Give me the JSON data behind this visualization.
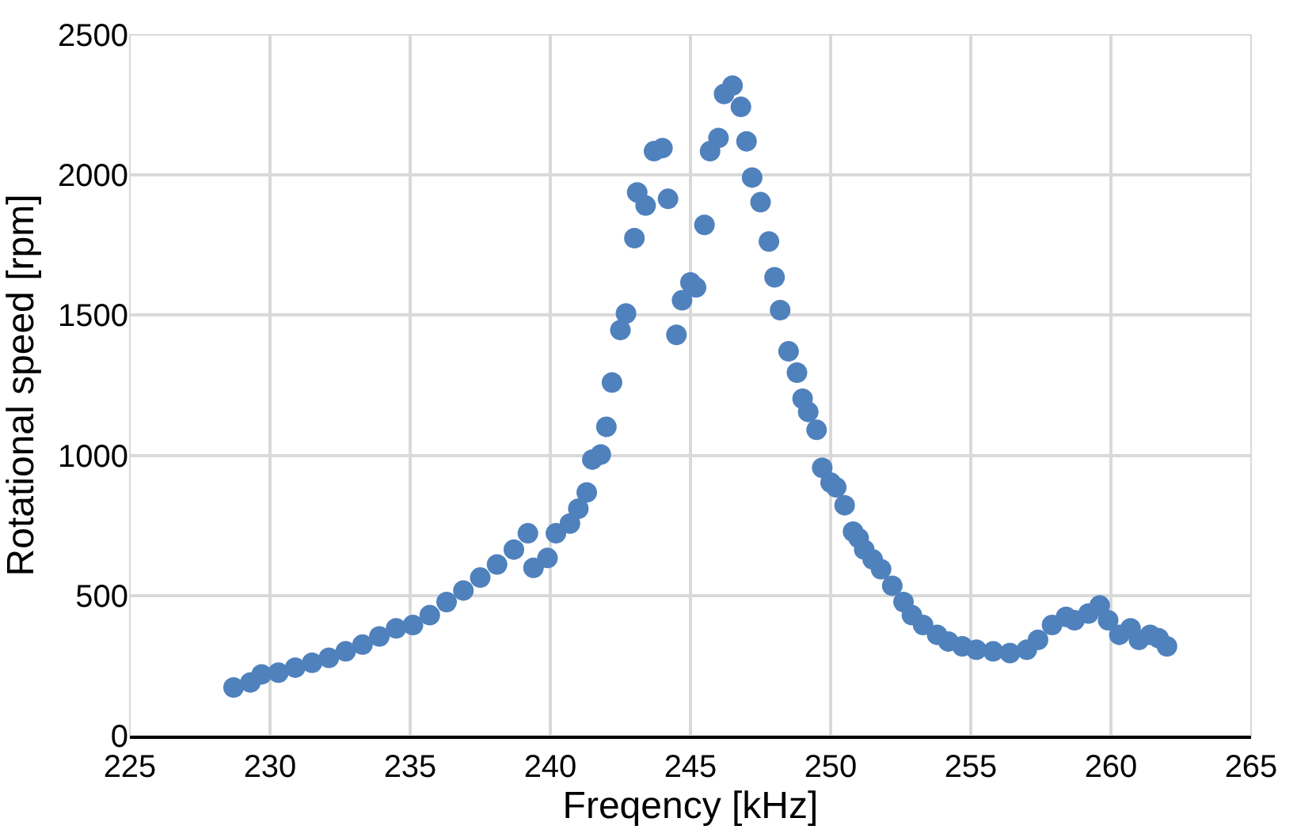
{
  "chart_data": {
    "type": "scatter",
    "xlabel": "Freqency [kHz]",
    "ylabel": "Rotational speed [rpm]",
    "xlim": [
      225,
      265
    ],
    "xticks": [
      225,
      230,
      235,
      240,
      245,
      250,
      255,
      260,
      265
    ],
    "ylim": [
      0,
      2500
    ],
    "yticks": [
      0,
      500,
      1000,
      1500,
      2000,
      2500
    ],
    "grid": true,
    "marker": "circle",
    "series": [
      {
        "color": "#4f81bd",
        "x": [
          228.7,
          229.3,
          229.7,
          230.3,
          230.9,
          231.5,
          232.1,
          232.7,
          233.3,
          233.9,
          234.5,
          235.1,
          235.7,
          236.3,
          236.9,
          237.5,
          238.1,
          238.7,
          239.2,
          239.4,
          239.9,
          240.2,
          240.7,
          241.0,
          241.3,
          241.5,
          241.8,
          242.0,
          242.2,
          242.5,
          242.7,
          243.0,
          243.1,
          243.4,
          243.7,
          244.0,
          244.2,
          244.5,
          244.7,
          245.0,
          245.2,
          245.5,
          245.7,
          246.0,
          246.2,
          246.5,
          246.8,
          247.0,
          247.2,
          247.5,
          247.8,
          248.0,
          248.2,
          248.5,
          248.8,
          249.0,
          249.2,
          249.5,
          249.7,
          250.0,
          250.2,
          250.5,
          250.8,
          251.0,
          251.2,
          251.5,
          251.8,
          252.2,
          252.6,
          252.9,
          253.3,
          253.8,
          254.2,
          254.7,
          255.2,
          255.8,
          256.4,
          257.0,
          257.4,
          257.9,
          258.4,
          258.7,
          259.2,
          259.6,
          259.9,
          260.3,
          260.7,
          261.0,
          261.4,
          261.7,
          262.0
        ],
        "values": [
          172,
          190,
          219,
          225,
          243,
          260,
          278,
          301,
          325,
          354,
          383,
          395,
          430,
          477,
          518,
          564,
          611,
          664,
          722,
          599,
          634,
          722,
          757,
          810,
          868,
          985,
          1003,
          1102,
          1260,
          1447,
          1506,
          1775,
          1938,
          1891,
          2085,
          2096,
          1915,
          1430,
          1553,
          1617,
          1599,
          1822,
          2085,
          2132,
          2289,
          2319,
          2243,
          2120,
          1991,
          1903,
          1763,
          1635,
          1518,
          1371,
          1295,
          1202,
          1155,
          1091,
          956,
          903,
          886,
          822,
          728,
          705,
          664,
          629,
          594,
          535,
          477,
          430,
          395,
          360,
          336,
          319,
          307,
          301,
          295,
          307,
          342,
          395,
          424,
          412,
          436,
          465,
          412,
          360,
          383,
          342,
          360,
          348,
          319
        ]
      }
    ]
  }
}
